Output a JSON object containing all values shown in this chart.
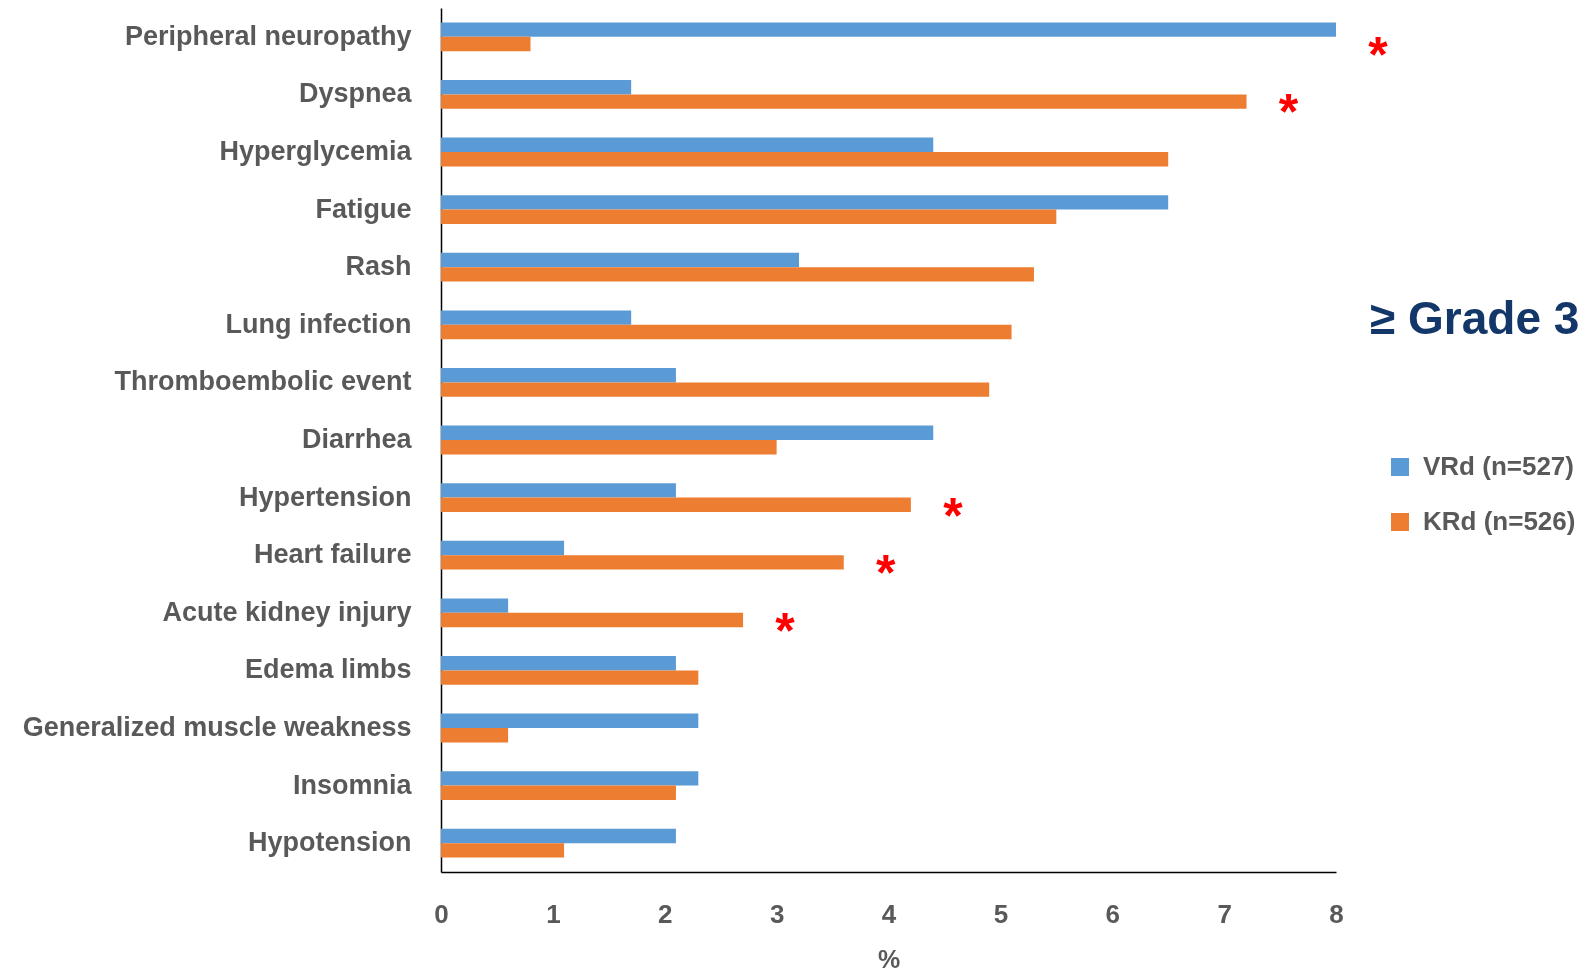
{
  "chart_data": {
    "type": "bar",
    "orientation": "horizontal",
    "categories": [
      "Peripheral neuropathy",
      "Dyspnea",
      "Hyperglycemia",
      "Fatigue",
      "Rash",
      "Lung infection",
      "Thromboembolic event",
      "Diarrhea",
      "Hypertension",
      "Heart failure",
      "Acute kidney injury",
      "Edema limbs",
      "Generalized muscle weakness",
      "Insomnia",
      "Hypotension"
    ],
    "series": [
      {
        "name": "VRd (n=527)",
        "color": "#5b9bd5",
        "values": [
          8.0,
          1.7,
          4.4,
          6.5,
          3.2,
          1.7,
          2.1,
          4.4,
          2.1,
          1.1,
          0.6,
          2.1,
          2.3,
          2.3,
          2.1
        ]
      },
      {
        "name": "KRd (n=526)",
        "color": "#ed7d31",
        "values": [
          0.8,
          7.2,
          6.5,
          5.5,
          5.3,
          5.1,
          4.9,
          3.0,
          4.2,
          3.6,
          2.7,
          2.3,
          0.6,
          2.1,
          1.1
        ]
      }
    ],
    "xlabel": "%",
    "xlim": [
      0,
      8
    ],
    "xticks": [
      0,
      1,
      2,
      3,
      4,
      5,
      6,
      7,
      8
    ],
    "legend": "right",
    "annotations": [
      "≥ Grade 3",
      {
        "text": "*",
        "x": 8.0,
        "y": "Peripheral neuropathy"
      },
      {
        "text": "*",
        "x": 7.2,
        "y": "Dyspnea"
      },
      {
        "text": "*",
        "x": 4.2,
        "y": "Hypertension"
      },
      {
        "text": "*",
        "x": 3.6,
        "y": "Heart failure"
      },
      {
        "text": "*",
        "x": 2.7,
        "y": "Acute kidney injury"
      }
    ]
  }
}
